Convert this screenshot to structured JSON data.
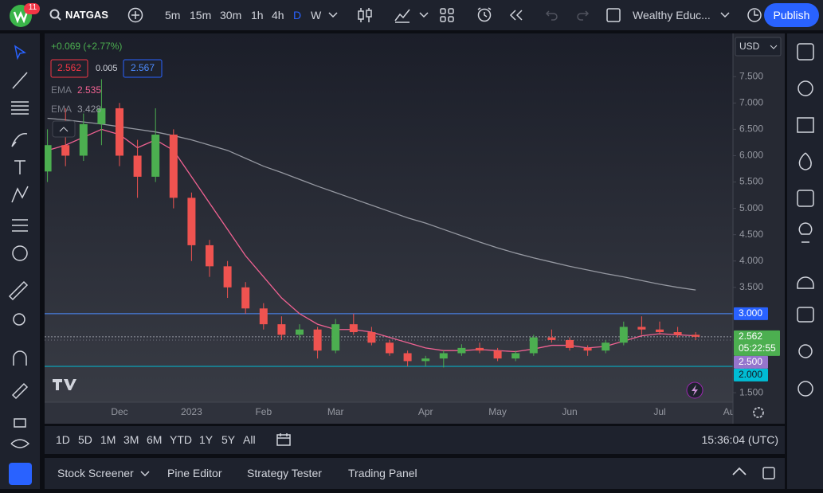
{
  "toolbar": {
    "notifications": 11,
    "symbol": "NATGAS",
    "intervals": [
      "5m",
      "15m",
      "30m",
      "1h",
      "4h",
      "D",
      "W"
    ],
    "active_interval": 5,
    "layout_name": "Wealthy Educ...",
    "publish": "Publish"
  },
  "legend": {
    "change": "+0.069 (+2.77%)",
    "bid": 2.562,
    "spread": 0.005,
    "ask": 2.567
  },
  "chart_data": {
    "type": "candlestick",
    "categories": [
      null,
      null,
      null,
      null,
      "Dec",
      null,
      null,
      null,
      "2023",
      null,
      null,
      null,
      "Feb",
      null,
      null,
      null,
      "Mar",
      null,
      null,
      null,
      null,
      "Apr",
      null,
      null,
      null,
      "May",
      null,
      null,
      null,
      "Jun",
      null,
      null,
      null,
      null,
      "Jul",
      null,
      null,
      null,
      "Aug"
    ],
    "open": [
      5.7,
      6.2,
      6.0,
      6.6,
      6.9,
      6.0,
      5.6,
      6.4,
      5.2,
      4.3,
      3.9,
      3.5,
      3.1,
      2.8,
      2.6,
      2.7,
      2.3,
      2.8,
      2.65,
      2.45,
      2.25,
      2.1,
      2.15,
      2.25,
      2.35,
      2.3,
      2.15,
      2.25,
      2.55,
      2.5,
      2.35,
      2.3,
      2.45,
      2.75,
      2.7,
      2.65,
      2.6,
      null,
      null
    ],
    "high": [
      6.5,
      6.9,
      6.8,
      7.45,
      7.0,
      6.3,
      6.9,
      6.5,
      5.3,
      4.4,
      4.0,
      3.6,
      3.2,
      2.95,
      2.8,
      2.75,
      2.9,
      3.0,
      2.75,
      2.5,
      2.3,
      2.2,
      2.3,
      2.42,
      2.45,
      2.35,
      2.3,
      2.6,
      2.7,
      2.55,
      2.4,
      2.5,
      2.85,
      2.95,
      2.85,
      2.75,
      2.65,
      null,
      null
    ],
    "low": [
      5.5,
      5.8,
      5.9,
      6.2,
      5.8,
      5.2,
      5.5,
      5.0,
      4.0,
      3.7,
      3.3,
      3.0,
      2.7,
      2.5,
      2.5,
      2.15,
      2.25,
      2.6,
      2.4,
      2.2,
      2.0,
      2.0,
      1.98,
      2.2,
      2.25,
      2.1,
      2.1,
      2.2,
      2.45,
      2.3,
      2.2,
      2.25,
      2.4,
      2.6,
      2.6,
      2.55,
      2.5,
      null,
      null
    ],
    "close": [
      6.2,
      6.0,
      6.6,
      6.9,
      6.0,
      5.6,
      6.4,
      5.2,
      4.3,
      3.9,
      3.5,
      3.1,
      2.8,
      2.6,
      2.7,
      2.3,
      2.8,
      2.65,
      2.45,
      2.25,
      2.1,
      2.15,
      2.25,
      2.35,
      2.3,
      2.15,
      2.25,
      2.55,
      2.5,
      2.35,
      2.3,
      2.45,
      2.75,
      2.7,
      2.65,
      2.6,
      2.562,
      null,
      null
    ],
    "up_color": "#4caf50",
    "down_color": "#ef5350",
    "series": [
      {
        "name": "EMA",
        "color": "#f06292",
        "legend_value": 2.535,
        "values": [
          6.1,
          6.2,
          6.35,
          6.5,
          6.4,
          6.15,
          6.3,
          6.1,
          5.6,
          5.1,
          4.6,
          4.1,
          3.7,
          3.3,
          3.0,
          2.8,
          2.7,
          2.7,
          2.65,
          2.55,
          2.45,
          2.35,
          2.3,
          2.3,
          2.32,
          2.3,
          2.28,
          2.33,
          2.4,
          2.4,
          2.35,
          2.38,
          2.48,
          2.58,
          2.62,
          2.6,
          2.58,
          null,
          null
        ]
      },
      {
        "name": "EMA",
        "color": "#9598a1",
        "legend_value": 3.428,
        "values": [
          6.71,
          6.68,
          6.64,
          6.6,
          6.55,
          6.5,
          6.45,
          6.38,
          6.3,
          6.2,
          6.1,
          5.95,
          5.8,
          5.68,
          5.55,
          5.42,
          5.3,
          5.18,
          5.06,
          4.94,
          4.82,
          4.72,
          4.6,
          4.48,
          4.36,
          4.25,
          4.15,
          4.06,
          3.98,
          3.9,
          3.83,
          3.76,
          3.7,
          3.63,
          3.56,
          3.5,
          3.45,
          null,
          null
        ]
      }
    ],
    "ylim": [
      1.32,
      8.32
    ],
    "yticks": [
      {
        "value": 1.5,
        "label": "1.500"
      },
      {
        "value": 2,
        "label": "2.000"
      },
      {
        "value": 2.5,
        "label": "2.500"
      },
      {
        "value": 3,
        "label": "3.000"
      },
      {
        "value": 3.5,
        "label": "3.500"
      },
      {
        "value": 4,
        "label": "4.000"
      },
      {
        "value": 4.5,
        "label": "4.500"
      },
      {
        "value": 5,
        "label": "5.000"
      },
      {
        "value": 5.5,
        "label": "5.500"
      },
      {
        "value": 6,
        "label": "6.000"
      },
      {
        "value": 6.5,
        "label": "6.500"
      },
      {
        "value": 7,
        "label": "7.000"
      },
      {
        "value": 7.5,
        "label": "7.500"
      }
    ],
    "currency": "USD",
    "price_lines": [
      {
        "value": 3,
        "label": "3.000",
        "color": "#2962ff"
      },
      {
        "value": 2,
        "label": "2.000",
        "color": "#00bcd4"
      }
    ],
    "price_tags": [
      {
        "value": 2.5,
        "label": "2.500",
        "color": "#9575cd"
      }
    ],
    "last_price": {
      "value": 2.562,
      "countdown": "05:22:55",
      "color": "#4caf50"
    }
  },
  "bottom_bar": {
    "ranges": [
      "1D",
      "5D",
      "1M",
      "3M",
      "6M",
      "YTD",
      "1Y",
      "5Y",
      "All"
    ],
    "clock": "15:36:04 (UTC)"
  },
  "tabs": [
    "Stock Screener",
    "Pine Editor",
    "Strategy Tester",
    "Trading Panel"
  ]
}
